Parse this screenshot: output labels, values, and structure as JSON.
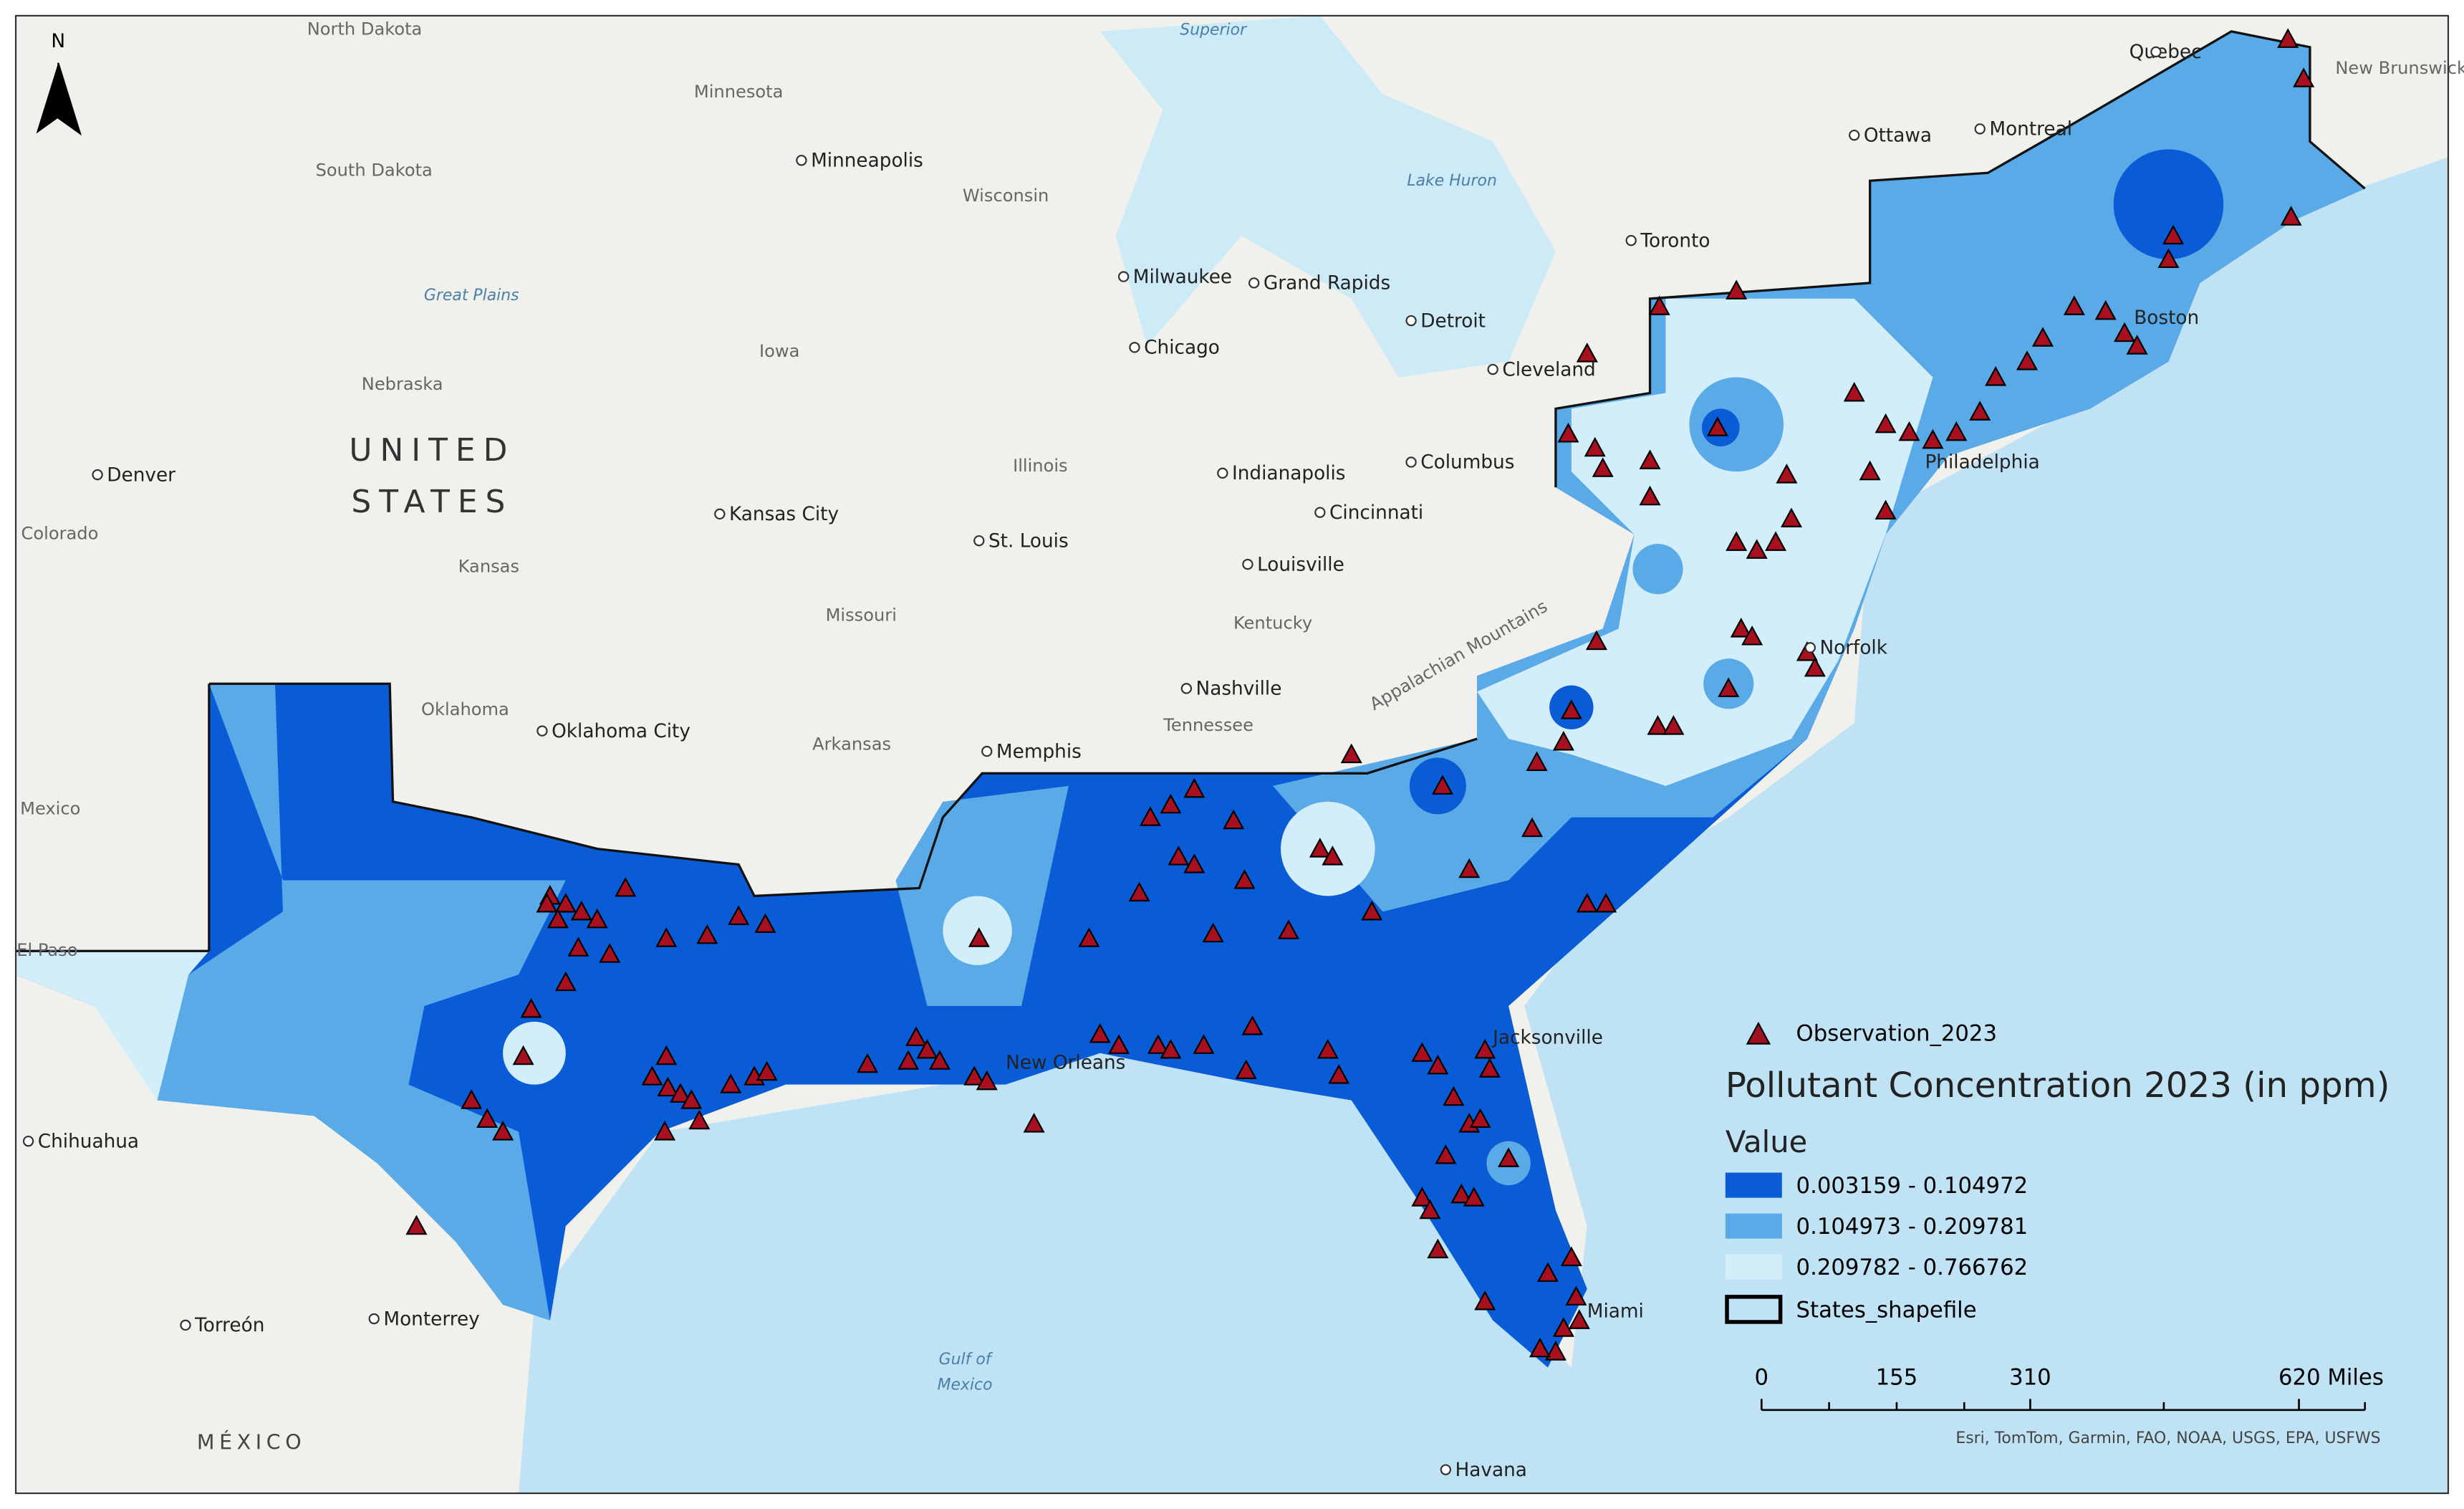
{
  "north_arrow": "N",
  "places": [
    "North Dakota",
    "Minnesota",
    "Superior",
    "Quebec",
    "New Brunswick",
    "South Dakota",
    "Minneapolis",
    "Wisconsin",
    "Lake Huron",
    "Ottawa",
    "Montreal",
    "Great Plains",
    "Milwaukee",
    "Grand Rapids",
    "Toronto",
    "Detroit",
    "Nebraska",
    "Iowa",
    "Chicago",
    "Cleveland",
    "Denver",
    "UNITED",
    "STATES",
    "Illinois",
    "Indianapolis",
    "Columbus",
    "Colorado",
    "Kansas City",
    "Kansas",
    "St. Louis",
    "Cincinnati",
    "Louisville",
    "Missouri",
    "Kentucky",
    "Nashville",
    "Tennessee",
    "Oklahoma",
    "Oklahoma City",
    "Arkansas",
    "Memphis",
    "Mexico",
    "El Paso",
    "Norfolk",
    "Chihuahua",
    "Torreón",
    "Monterrey",
    "Gulf of",
    "Mexico",
    "MÉXICO",
    "Havana",
    "Jacksonville",
    "Miami",
    "Boston",
    "Philadelphia",
    "New Orleans",
    "Appalachian Mountains"
  ],
  "legend": {
    "points": "Observation_2023",
    "title": "Pollutant Concentration 2023 (in ppm)",
    "subtitle": "Value",
    "classes": [
      "0.003159 - 0.104972",
      "0.104973 - 0.209781",
      "0.209782 - 0.766762"
    ],
    "boundary": "States_shapefile"
  },
  "scale_bar": {
    "labels": [
      "0",
      "155",
      "310",
      "620 Miles"
    ]
  },
  "attribution": "Esri, TomTom, Garmin, FAO, NOAA, USGS, EPA, USFWS"
}
